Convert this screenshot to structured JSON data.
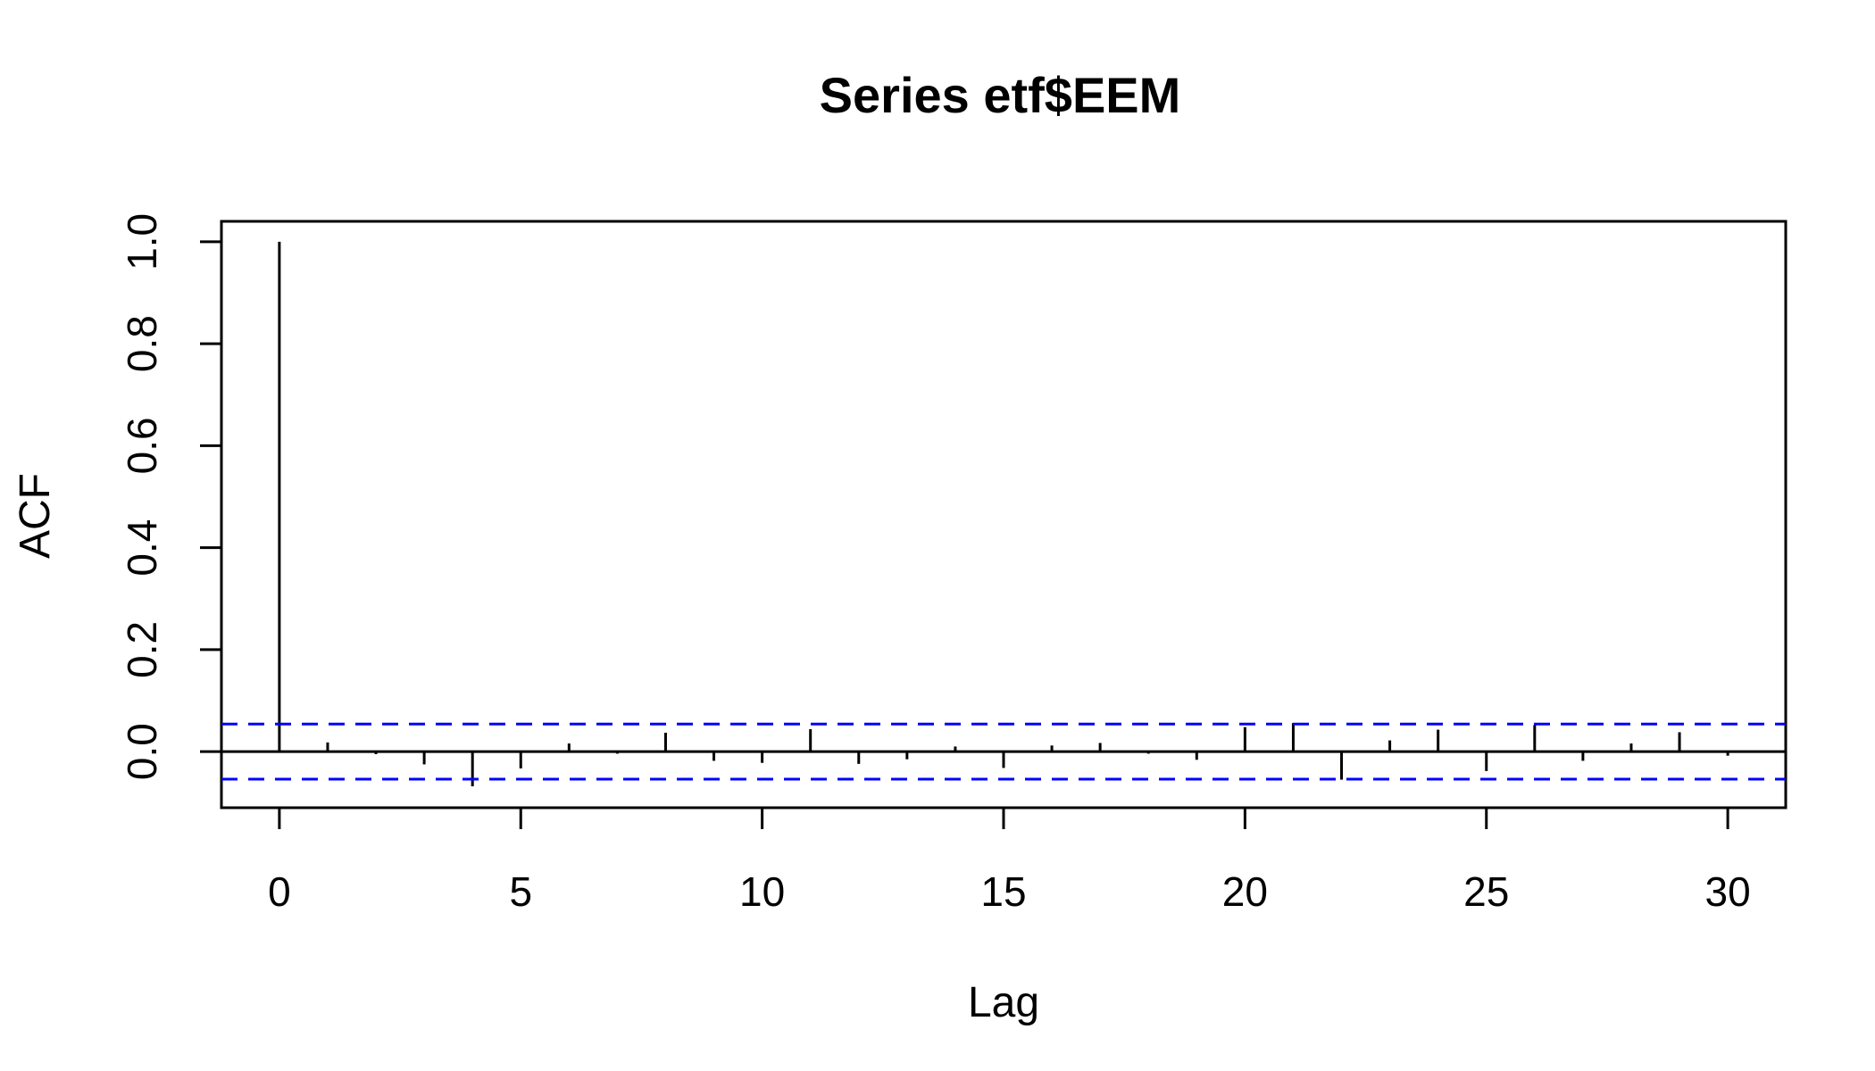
{
  "chart_data": {
    "type": "bar",
    "title": "Series  etf$EEM",
    "xlabel": "Lag",
    "ylabel": "ACF",
    "xlim": [
      -1.2,
      31.2
    ],
    "ylim": [
      -0.11,
      1.04
    ],
    "x_ticks": [
      0,
      5,
      10,
      15,
      20,
      25,
      30
    ],
    "x_tick_labels": [
      "0",
      "5",
      "10",
      "15",
      "20",
      "25",
      "30"
    ],
    "y_ticks": [
      0.0,
      0.2,
      0.4,
      0.6,
      0.8,
      1.0
    ],
    "y_tick_labels": [
      "0.0",
      "0.2",
      "0.4",
      "0.6",
      "0.8",
      "1.0"
    ],
    "lags": [
      0,
      1,
      2,
      3,
      4,
      5,
      6,
      7,
      8,
      9,
      10,
      11,
      12,
      13,
      14,
      15,
      16,
      17,
      18,
      19,
      20,
      21,
      22,
      23,
      24,
      25,
      26,
      27,
      28,
      29,
      30
    ],
    "acf": [
      1.0,
      0.018,
      -0.005,
      -0.025,
      -0.068,
      -0.033,
      0.016,
      -0.004,
      0.037,
      -0.018,
      -0.022,
      0.044,
      -0.024,
      -0.015,
      0.01,
      -0.032,
      0.012,
      0.017,
      -0.004,
      -0.016,
      0.048,
      0.056,
      -0.055,
      0.022,
      0.043,
      -0.038,
      0.052,
      -0.018,
      0.016,
      0.038,
      -0.008
    ],
    "confidence_bound": 0.054,
    "grid": false,
    "colors": {
      "bars": "#000000",
      "confidence": "#0000ff",
      "zero_line": "#000000"
    }
  }
}
